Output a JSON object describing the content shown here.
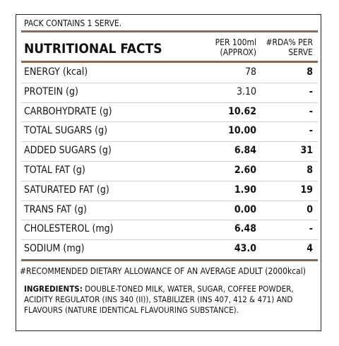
{
  "pack_note": "PACK CONTAINS 1 SERVE.",
  "table": {
    "title": "NUTRITIONAL FACTS",
    "columns": [
      "PER 100ml (APPROX)",
      "#RDA% PER SERVE"
    ],
    "rows": [
      [
        "ENERGY (kcal)",
        "78",
        "8"
      ],
      [
        "PROTEIN (g)",
        "3.10",
        "-"
      ],
      [
        "CARBOHYDRATE (g)",
        "10.62",
        "-"
      ],
      [
        "TOTAL SUGARS (g)",
        "10.00",
        "-"
      ],
      [
        "ADDED SUGARS (g)",
        "6.84",
        "31"
      ],
      [
        "TOTAL FAT (g)",
        "2.60",
        "8"
      ],
      [
        "SATURATED FAT (g)",
        "1.90",
        "19"
      ],
      [
        "TRANS FAT (g)",
        "0.00",
        "0"
      ],
      [
        "CHOLESTEROL (mg)",
        "6.48",
        "-"
      ],
      [
        "SODIUM (mg)",
        "43.0",
        "4"
      ]
    ]
  },
  "footnote": "#RECOMMENDED DIETARY ALLOWANCE OF AN AVERAGE ADULT (2000kcal)",
  "ingredients": {
    "label": "INGREDIENTS:",
    "text": "DOUBLE-TONED MILK, WATER, SUGAR, COFFEE POWDER, ACIDITY REGULATOR (INS 340 (II)), STABILIZER (INS 407, 412 & 471) AND FLAVOURS (NATURE IDENTICAL FLAVOURING SUBSTANCE)."
  }
}
